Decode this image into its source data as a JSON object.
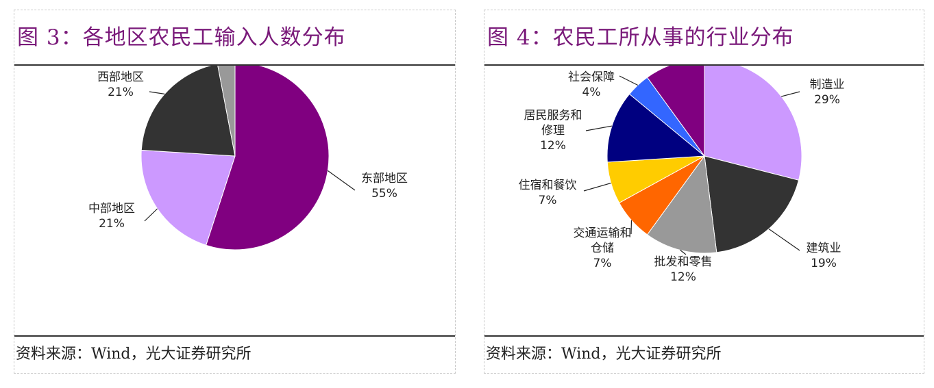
{
  "chart_data": [
    {
      "type": "pie",
      "title": "图 3：各地区农民工输入人数分布",
      "source": "资料来源：Wind，光大证券研究所",
      "slices": [
        {
          "name": "东部地区",
          "pct_label": "55%",
          "value": 55,
          "color": "#800080"
        },
        {
          "name": "中部地区",
          "pct_label": "21%",
          "value": 21,
          "color": "#cc99ff"
        },
        {
          "name": "西部地区",
          "pct_label": "21%",
          "value": 21,
          "color": "#333333"
        },
        {
          "name": "",
          "pct_label": "",
          "value": 3,
          "color": "#999999"
        }
      ]
    },
    {
      "type": "pie",
      "title": "图 4：农民工所从事的行业分布",
      "source": "资料来源：Wind，光大证券研究所",
      "slices": [
        {
          "name": "制造业",
          "pct_label": "29%",
          "value": 29,
          "color": "#cc99ff"
        },
        {
          "name": "建筑业",
          "pct_label": "19%",
          "value": 19,
          "color": "#333333"
        },
        {
          "name": "批发和零售",
          "pct_label": "12%",
          "value": 12,
          "color": "#999999"
        },
        {
          "name": "交通运输和仓储",
          "pct_label": "7%",
          "value": 7,
          "color": "#ff6600"
        },
        {
          "name": "住宿和餐饮",
          "pct_label": "7%",
          "value": 7,
          "color": "#ffcc00"
        },
        {
          "name": "居民服务和修理",
          "pct_label": "12%",
          "value": 12,
          "color": "#000080"
        },
        {
          "name": "社会保障",
          "pct_label": "4%",
          "value": 4,
          "color": "#3366ff"
        },
        {
          "name": "",
          "pct_label": "",
          "value": 10,
          "color": "#800080"
        }
      ]
    }
  ]
}
